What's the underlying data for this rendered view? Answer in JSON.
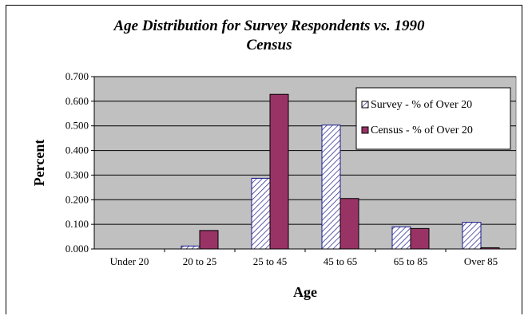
{
  "chart_data": {
    "type": "bar",
    "title": [
      "Age Distribution for Survey Respondents vs. 1990",
      "Census"
    ],
    "xlabel": "Age",
    "ylabel": "Percent",
    "categories": [
      "Under 20",
      "20 to 25",
      "25 to 45",
      "45 to 65",
      "65 to 85",
      "Over 85"
    ],
    "series": [
      {
        "name": "Survey - % of Over 20",
        "values": [
          0.0,
          0.012,
          0.287,
          0.503,
          0.09,
          0.108
        ],
        "pattern": "hatch",
        "color": "#1a1a8c"
      },
      {
        "name": "Census - % of Over 20",
        "values": [
          0.0,
          0.075,
          0.628,
          0.205,
          0.083,
          0.005
        ],
        "pattern": "solid",
        "color": "#993366"
      }
    ],
    "ylim": [
      0,
      0.7
    ],
    "yticks": [
      "0.000",
      "0.100",
      "0.200",
      "0.300",
      "0.400",
      "0.500",
      "0.600",
      "0.700"
    ],
    "grid": true,
    "legend_position": "right",
    "plot_background": "#c0c0c0"
  }
}
